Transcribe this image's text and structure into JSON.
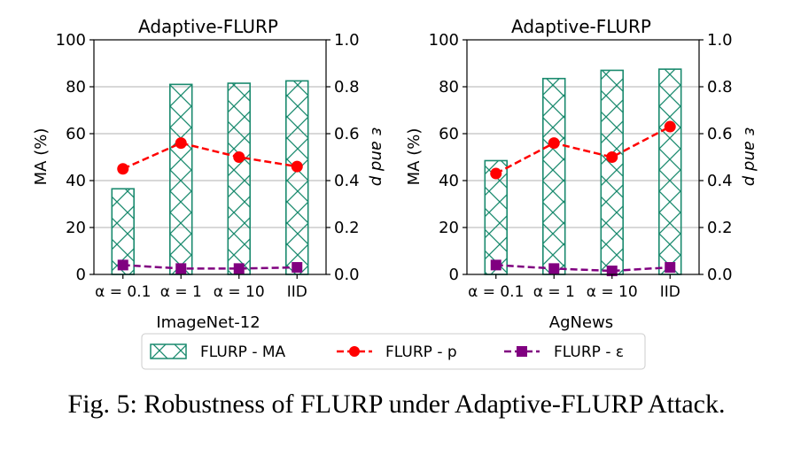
{
  "caption": "Fig. 5: Robustness of FLURP under Adaptive-FLURP Attack.",
  "colors": {
    "ma": "#1a8a6e",
    "p": "#ff0000",
    "eps": "#800080",
    "grid": "#b0b0b0"
  },
  "legend": {
    "ma": "FLURP - MA",
    "p": "FLURP - p",
    "eps": "FLURP - ε",
    "placement": "bottom-center"
  },
  "chart_data": [
    {
      "type": "bar",
      "title": "Adaptive-FLURP",
      "xlabel": "ImageNet-12",
      "ylabel": "MA (%)",
      "ylabel_right": "ε and p",
      "categories": [
        "α = 0.1",
        "α = 1",
        "α = 10",
        "IID"
      ],
      "ylim": [
        0,
        100
      ],
      "ylim_right": [
        0,
        1.0
      ],
      "yticks": [
        "0",
        "20",
        "40",
        "60",
        "80",
        "100"
      ],
      "yticks_right": [
        "0.0",
        "0.2",
        "0.4",
        "0.6",
        "0.8",
        "1.0"
      ],
      "grid": true,
      "series": [
        {
          "name": "FLURP - MA",
          "kind": "bar",
          "axis": "left",
          "values": [
            36.5,
            81,
            81.5,
            82.5
          ]
        },
        {
          "name": "FLURP - p",
          "kind": "line",
          "axis": "right",
          "values": [
            0.45,
            0.56,
            0.5,
            0.46
          ]
        },
        {
          "name": "FLURP - ε",
          "kind": "line",
          "axis": "right",
          "values": [
            0.04,
            0.025,
            0.025,
            0.03
          ]
        }
      ]
    },
    {
      "type": "bar",
      "title": "Adaptive-FLURP",
      "xlabel": "AgNews",
      "ylabel": "MA (%)",
      "ylabel_right": "ε and p",
      "categories": [
        "α = 0.1",
        "α = 1",
        "α = 10",
        "IID"
      ],
      "ylim": [
        0,
        100
      ],
      "ylim_right": [
        0,
        1.0
      ],
      "yticks": [
        "0",
        "20",
        "40",
        "60",
        "80",
        "100"
      ],
      "yticks_right": [
        "0.0",
        "0.2",
        "0.4",
        "0.6",
        "0.8",
        "1.0"
      ],
      "grid": true,
      "series": [
        {
          "name": "FLURP - MA",
          "kind": "bar",
          "axis": "left",
          "values": [
            48.5,
            83.5,
            87,
            87.5
          ]
        },
        {
          "name": "FLURP - p",
          "kind": "line",
          "axis": "right",
          "values": [
            0.43,
            0.56,
            0.5,
            0.63
          ]
        },
        {
          "name": "FLURP - ε",
          "kind": "line",
          "axis": "right",
          "values": [
            0.04,
            0.025,
            0.015,
            0.03
          ]
        }
      ]
    }
  ]
}
